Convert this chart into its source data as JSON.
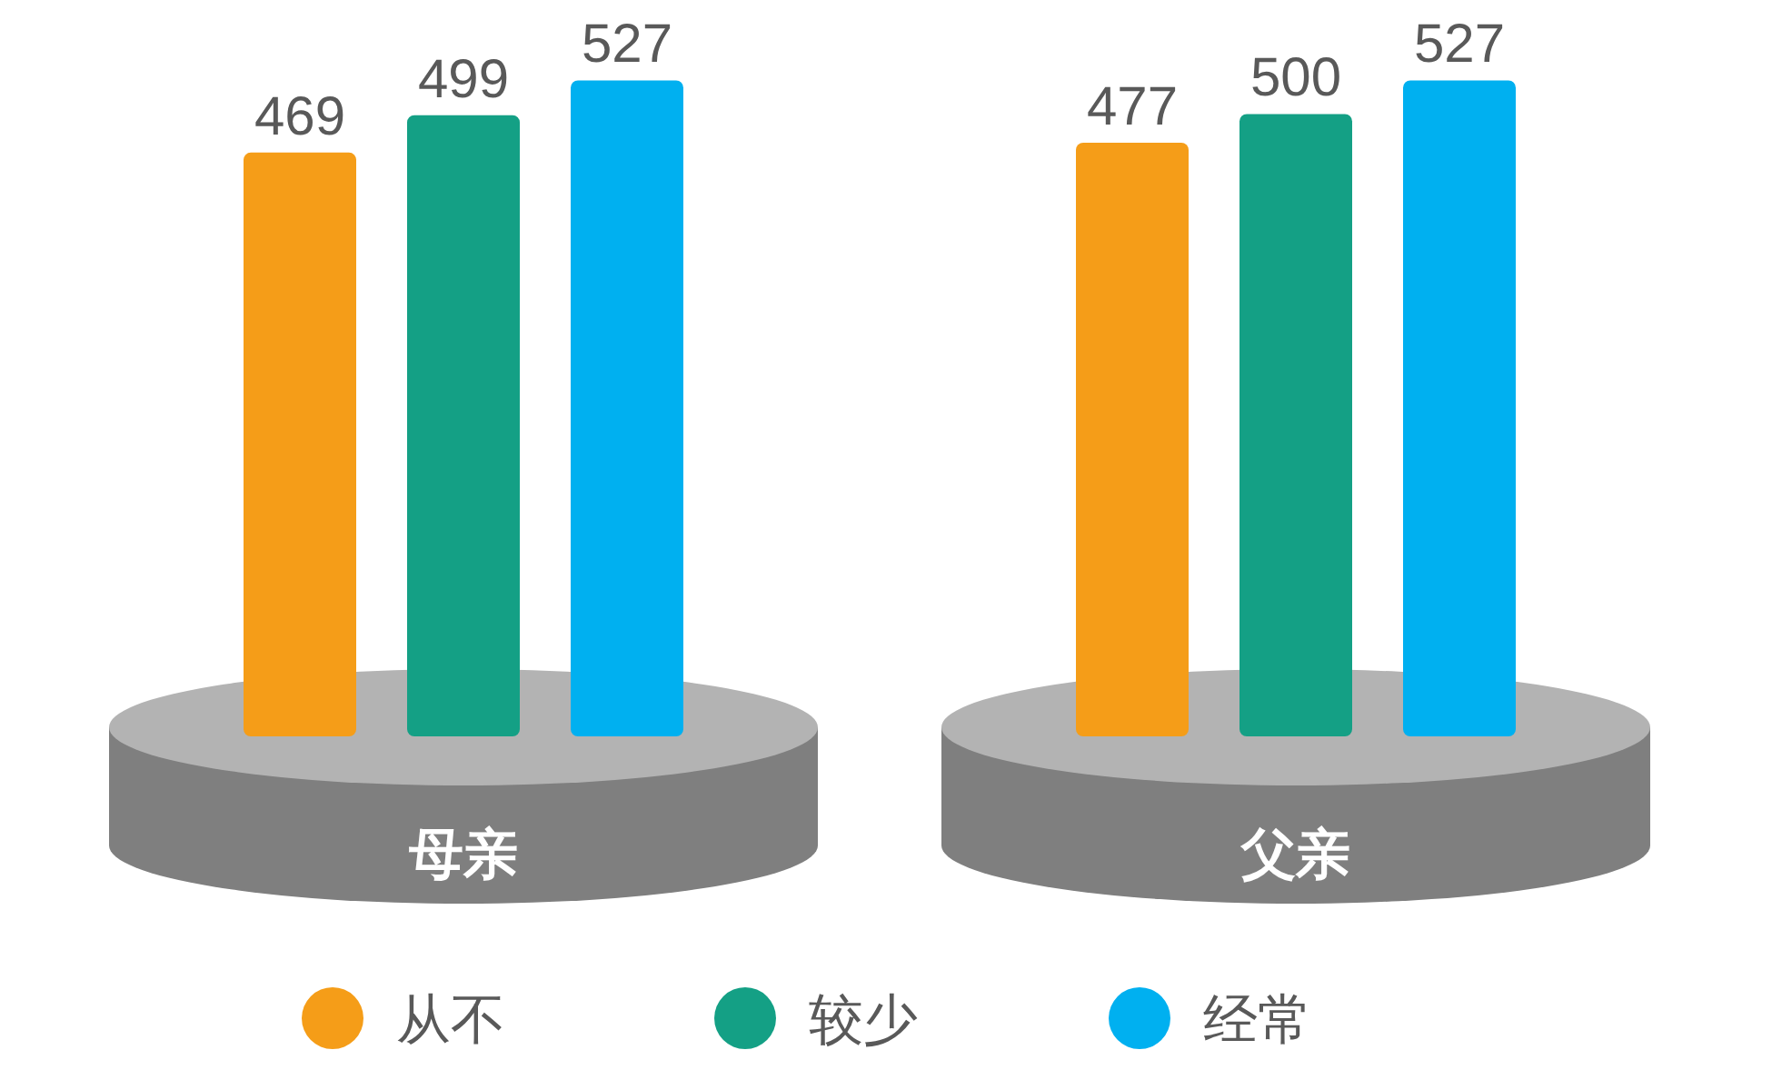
{
  "chart_data": {
    "type": "bar",
    "categories": [
      "母亲",
      "父亲"
    ],
    "series": [
      {
        "name": "从不",
        "color": "#f59d18",
        "values": [
          469,
          477
        ]
      },
      {
        "name": "较少",
        "color": "#14a085",
        "values": [
          499,
          500
        ]
      },
      {
        "name": "经常",
        "color": "#00b0f0",
        "values": [
          527,
          527
        ]
      }
    ],
    "data_labels": true,
    "legend": "bottom"
  }
}
